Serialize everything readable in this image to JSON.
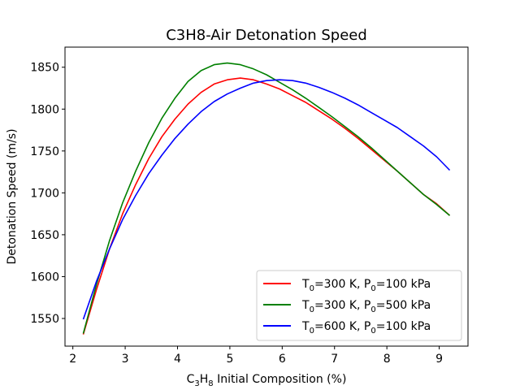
{
  "chart_data": {
    "type": "line",
    "title": "C3H8-Air Detonation Speed",
    "xlabel": {
      "pre": "C",
      "sub1": "3",
      "mid": "H",
      "sub2": "8",
      "post": " Initial Composition (%)"
    },
    "ylabel": "Detonation Speed (m/s)",
    "xlim": [
      1.85,
      9.55
    ],
    "ylim": [
      1517,
      1874
    ],
    "xticks": [
      2,
      3,
      4,
      5,
      6,
      7,
      8,
      9
    ],
    "yticks": [
      1550,
      1600,
      1650,
      1700,
      1750,
      1800,
      1850
    ],
    "grid": false,
    "legend_position": "lower-right",
    "series": [
      {
        "name": {
          "a": "T",
          "s1": "0",
          "b": "=300 K, P",
          "s2": "0",
          "c": "=100 kPa"
        },
        "color": "#ff0000",
        "x": [
          2.2,
          2.45,
          2.7,
          2.95,
          3.2,
          3.45,
          3.7,
          3.95,
          4.2,
          4.45,
          4.7,
          4.95,
          5.2,
          5.45,
          5.7,
          5.95,
          6.2,
          6.45,
          6.7,
          6.95,
          7.2,
          7.45,
          7.7,
          7.95,
          8.2,
          8.45,
          8.7,
          8.95,
          9.2
        ],
        "y": [
          1531,
          1584,
          1633,
          1675,
          1710,
          1741,
          1767,
          1788,
          1806,
          1820,
          1830,
          1835,
          1837,
          1835,
          1830,
          1824,
          1816,
          1808,
          1798,
          1788,
          1777,
          1765,
          1752,
          1739,
          1726,
          1712,
          1698,
          1687,
          1673
        ]
      },
      {
        "name": {
          "a": "T",
          "s1": "0",
          "b": "=300 K, P",
          "s2": "0",
          "c": "=500 kPa"
        },
        "color": "#008000",
        "x": [
          2.2,
          2.45,
          2.7,
          2.95,
          3.2,
          3.45,
          3.7,
          3.95,
          4.2,
          4.45,
          4.7,
          4.95,
          5.2,
          5.45,
          5.7,
          5.95,
          6.2,
          6.45,
          6.7,
          6.95,
          7.2,
          7.45,
          7.7,
          7.95,
          8.2,
          8.45,
          8.7,
          8.95,
          9.2
        ],
        "y": [
          1532,
          1590,
          1643,
          1688,
          1726,
          1760,
          1789,
          1813,
          1833,
          1846,
          1853,
          1855,
          1853,
          1848,
          1841,
          1832,
          1823,
          1813,
          1802,
          1791,
          1779,
          1767,
          1754,
          1740,
          1726,
          1712,
          1698,
          1686,
          1673
        ]
      },
      {
        "name": {
          "a": "T",
          "s1": "0",
          "b": "=600 K, P",
          "s2": "0",
          "c": "=100 kPa"
        },
        "color": "#0000ff",
        "x": [
          2.2,
          2.45,
          2.7,
          2.95,
          3.2,
          3.45,
          3.7,
          3.95,
          4.2,
          4.45,
          4.7,
          4.95,
          5.2,
          5.45,
          5.7,
          5.95,
          6.2,
          6.45,
          6.7,
          6.95,
          7.2,
          7.45,
          7.7,
          7.95,
          8.2,
          8.45,
          8.7,
          8.95,
          9.2
        ],
        "y": [
          1549,
          1594,
          1633,
          1668,
          1697,
          1723,
          1745,
          1765,
          1782,
          1797,
          1809,
          1818,
          1825,
          1831,
          1834,
          1835,
          1834,
          1831,
          1826,
          1820,
          1813,
          1805,
          1796,
          1787,
          1778,
          1767,
          1756,
          1743,
          1727
        ]
      }
    ]
  }
}
